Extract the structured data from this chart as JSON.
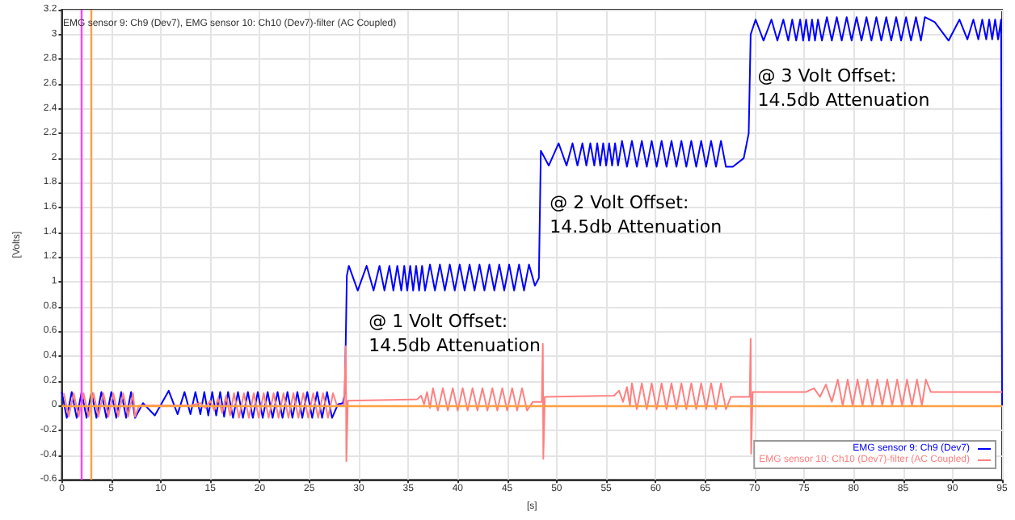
{
  "chart_data": {
    "type": "line",
    "title": "EMG sensor 9: Ch9 (Dev7), EMG sensor 10: Ch10 (Dev7)-filter (AC Coupled)",
    "xlabel": "[s]",
    "ylabel": "[Volts]",
    "xlim": [
      0,
      95
    ],
    "xticks": [
      0,
      5,
      10,
      15,
      20,
      25,
      30,
      35,
      40,
      45,
      50,
      55,
      60,
      65,
      70,
      75,
      80,
      85,
      90,
      95
    ],
    "ylim": [
      -0.6,
      3.2
    ],
    "yticks": [
      -0.6,
      -0.4,
      -0.2,
      0,
      0.2,
      0.4,
      0.6,
      0.8,
      1,
      1.2,
      1.4,
      1.6,
      1.8,
      2,
      2.2,
      2.4,
      2.6,
      2.8,
      3,
      3.2
    ],
    "grid": true,
    "legend": "bottom right",
    "marker": "none",
    "line_style": "solid",
    "annotations": [
      "@ 1 Volt Offset:\n14.5db Attenuation",
      "@ 2 Volt Offset:\n14.5db Attenuation",
      "@ 3 Volt Offset:\n14.5db Attenuation"
    ],
    "ref_lines": [
      {
        "axis": "x",
        "value": 2,
        "color": "#ff40ff"
      },
      {
        "axis": "x",
        "value": 3,
        "color": "#ffa040"
      },
      {
        "axis": "y",
        "value": 0,
        "color": "#ffa040"
      }
    ],
    "series": [
      {
        "name": "EMG sensor 9: Ch9 (Dev7)",
        "color": "#0000ff",
        "x": [
          0,
          0.5,
          1,
          1.5,
          2,
          2.5,
          3,
          3.5,
          4,
          4.5,
          5,
          5.5,
          6,
          6.5,
          7,
          7.4,
          8.2,
          9.4,
          10.8,
          11.7,
          12.4,
          13,
          13.5,
          14,
          14.4,
          14.8,
          15.2,
          15.6,
          16,
          16.4,
          16.8,
          17.3,
          17.8,
          18.3,
          18.8,
          19.3,
          19.8,
          20.3,
          20.8,
          21.3,
          21.8,
          22.3,
          22.8,
          23.3,
          23.8,
          24.3,
          24.8,
          25.3,
          25.8,
          26.3,
          26.8,
          27.3,
          27.9,
          28.4,
          28.6,
          28.8,
          29,
          29.9,
          30.8,
          31.5,
          32.1,
          32.6,
          33.1,
          33.5,
          33.9,
          34.3,
          34.6,
          34.9,
          35.2,
          35.5,
          35.8,
          36.1,
          36.4,
          36.7,
          37.2,
          37.7,
          38.2,
          38.7,
          39.2,
          39.7,
          40.2,
          40.7,
          41.2,
          41.7,
          42.2,
          42.7,
          43.2,
          43.7,
          44.2,
          44.7,
          45.2,
          45.7,
          46.2,
          46.7,
          47.2,
          47.8,
          48.2,
          48.4,
          49.2,
          50.2,
          51,
          51.6,
          52.1,
          52.6,
          53,
          53.4,
          53.8,
          54.1,
          54.4,
          54.7,
          55,
          55.3,
          55.6,
          55.9,
          56.2,
          56.6,
          57.1,
          57.6,
          58.1,
          58.6,
          59.1,
          59.6,
          60.1,
          60.6,
          61.1,
          61.6,
          62.1,
          62.6,
          63.1,
          63.6,
          64.1,
          64.6,
          65.1,
          65.6,
          66.1,
          66.6,
          67.1,
          67.8,
          68.9,
          69.4,
          69.6,
          70.1,
          70.9,
          71.7,
          72.3,
          72.9,
          73.4,
          73.8,
          74.2,
          74.6,
          74.9,
          75.2,
          75.5,
          75.8,
          76.1,
          76.4,
          76.8,
          77.3,
          77.8,
          78.3,
          78.8,
          79.3,
          79.8,
          80.3,
          80.8,
          81.3,
          81.8,
          82.3,
          82.8,
          83.3,
          83.8,
          84.3,
          84.8,
          85.3,
          85.8,
          86.3,
          86.8,
          87.2,
          88.2,
          89.6,
          90.7,
          91.5,
          92.1,
          92.6,
          93,
          93.4,
          93.7,
          94,
          94.3,
          94.6,
          94.9,
          95
        ],
        "values": [
          0.11,
          -0.1,
          0.11,
          -0.1,
          0.11,
          -0.1,
          0.11,
          -0.1,
          0.11,
          -0.1,
          0.11,
          -0.1,
          0.11,
          -0.1,
          0.11,
          -0.1,
          0.02,
          -0.08,
          0.12,
          -0.07,
          0.11,
          -0.07,
          0.11,
          -0.07,
          0.11,
          -0.08,
          0.11,
          -0.08,
          0.11,
          -0.09,
          0.11,
          -0.1,
          0.11,
          -0.1,
          0.11,
          -0.1,
          0.11,
          -0.1,
          0.11,
          -0.1,
          0.11,
          -0.1,
          0.11,
          -0.1,
          0.11,
          -0.1,
          0.11,
          -0.1,
          0.11,
          -0.1,
          0.11,
          -0.1,
          0.01,
          0.02,
          0.1,
          1.05,
          1.13,
          0.93,
          1.13,
          0.93,
          1.13,
          0.93,
          1.13,
          0.93,
          1.13,
          0.93,
          1.13,
          0.93,
          1.13,
          0.93,
          1.13,
          0.93,
          1.13,
          0.93,
          1.14,
          0.93,
          1.14,
          0.93,
          1.14,
          0.93,
          1.14,
          0.93,
          1.14,
          0.93,
          1.14,
          0.93,
          1.14,
          0.93,
          1.14,
          0.93,
          1.14,
          0.93,
          1.14,
          0.93,
          1.14,
          0.97,
          1.03,
          2.06,
          1.94,
          2.12,
          1.94,
          2.12,
          1.94,
          2.12,
          1.94,
          2.12,
          1.94,
          2.12,
          1.94,
          2.12,
          1.94,
          2.12,
          1.94,
          2.12,
          1.94,
          2.14,
          1.93,
          2.14,
          1.93,
          2.14,
          1.93,
          2.14,
          1.93,
          2.14,
          1.93,
          2.14,
          1.93,
          2.14,
          1.93,
          2.14,
          1.93,
          2.14,
          1.93,
          2.14,
          1.93,
          2.14,
          1.93,
          1.93,
          2,
          2.2,
          3,
          3.12,
          2.95,
          3.12,
          2.95,
          3.12,
          2.95,
          3.12,
          2.95,
          3.12,
          2.95,
          3.12,
          2.95,
          3.12,
          2.95,
          3.12,
          2.95,
          3.14,
          2.95,
          3.14,
          2.95,
          3.14,
          2.95,
          3.14,
          2.95,
          3.14,
          2.95,
          3.14,
          2.95,
          3.14,
          2.95,
          3.14,
          2.95,
          3.14,
          2.95,
          3.14,
          2.95,
          3.14,
          3.1,
          2.95,
          3.12,
          2.96,
          3.12,
          2.96,
          3.12,
          2.96,
          3.12,
          2.96,
          3.12,
          2.96,
          3.12,
          0
        ]
      },
      {
        "name": "EMG sensor 10: Ch10 (Dev7)-filter (AC Coupled)",
        "color": "#ff8080",
        "x": [
          0.2,
          0.7,
          1.2,
          1.7,
          2.2,
          2.7,
          3.2,
          3.7,
          4.2,
          4.7,
          5.2,
          5.7,
          6.2,
          6.7,
          7.2,
          7.4,
          7.8,
          13,
          14,
          14.5,
          15,
          15.4,
          15.8,
          16.2,
          16.6,
          17,
          17.4,
          17.9,
          18.4,
          18.9,
          19.4,
          19.9,
          20.4,
          20.9,
          21.4,
          21.9,
          22.4,
          22.9,
          23.4,
          23.9,
          24.4,
          24.9,
          25.4,
          25.9,
          26.4,
          26.9,
          27.4,
          27.8,
          28.5,
          28.7,
          28.75,
          28.9,
          35.9,
          36.3,
          36.6,
          36.9,
          37.2,
          37.5,
          38,
          38.5,
          39,
          39.5,
          40,
          40.5,
          41,
          41.5,
          42,
          42.5,
          43,
          43.5,
          44,
          44.5,
          45,
          45.5,
          46,
          46.5,
          47,
          47.6,
          48.5,
          48.6,
          48.65,
          48.8,
          55.8,
          56.3,
          56.7,
          57.1,
          57.4,
          57.6,
          58.1,
          58.6,
          59.1,
          59.6,
          60.1,
          60.6,
          61.1,
          61.6,
          62.1,
          62.6,
          63.1,
          63.6,
          64.1,
          64.6,
          65.1,
          65.6,
          66.1,
          66.6,
          67.1,
          67.6,
          69.5,
          69.6,
          69.65,
          69.8,
          75.2,
          76,
          76.6,
          77.2,
          77.8,
          78.4,
          78.9,
          79.4,
          79.9,
          80.4,
          80.9,
          81.4,
          81.9,
          82.4,
          82.9,
          83.4,
          83.9,
          84.4,
          84.9,
          85.4,
          85.9,
          86.4,
          86.9,
          87.3,
          87.8,
          95
        ],
        "values": [
          0.1,
          -0.09,
          0.1,
          -0.09,
          0.1,
          -0.09,
          0.1,
          -0.09,
          0.1,
          -0.09,
          0.1,
          -0.09,
          0.1,
          -0.09,
          0.1,
          -0.09,
          0,
          0,
          0.02,
          -0.02,
          0.04,
          -0.04,
          0.06,
          -0.06,
          0.08,
          -0.08,
          0.1,
          -0.1,
          0.1,
          -0.1,
          0.1,
          -0.1,
          0.1,
          -0.1,
          0.1,
          -0.1,
          0.1,
          -0.1,
          0.1,
          -0.1,
          0.1,
          -0.1,
          0.1,
          -0.1,
          0.1,
          -0.1,
          0.1,
          0,
          0,
          0.48,
          -0.45,
          0.04,
          0.05,
          0.08,
          0.01,
          0.11,
          -0.02,
          0.14,
          -0.04,
          0.14,
          -0.04,
          0.14,
          -0.04,
          0.14,
          -0.04,
          0.14,
          -0.04,
          0.14,
          -0.04,
          0.14,
          -0.04,
          0.14,
          -0.04,
          0.14,
          -0.04,
          0.14,
          -0.04,
          0.03,
          0.03,
          0.5,
          -0.43,
          0.07,
          0.08,
          0.12,
          0.03,
          0.15,
          0,
          0.18,
          -0.03,
          0.18,
          -0.03,
          0.18,
          -0.03,
          0.18,
          -0.03,
          0.18,
          -0.03,
          0.18,
          -0.03,
          0.18,
          -0.03,
          0.18,
          -0.03,
          0.18,
          -0.03,
          0.18,
          -0.03,
          0.07,
          0.07,
          0.54,
          -0.39,
          0.11,
          0.11,
          0.14,
          0.07,
          0.17,
          0.03,
          0.21,
          0,
          0.21,
          0,
          0.21,
          0,
          0.21,
          0,
          0.21,
          0,
          0.21,
          0,
          0.21,
          0,
          0.21,
          0,
          0.21,
          0,
          0.21,
          0.11,
          0.11
        ]
      }
    ]
  }
}
